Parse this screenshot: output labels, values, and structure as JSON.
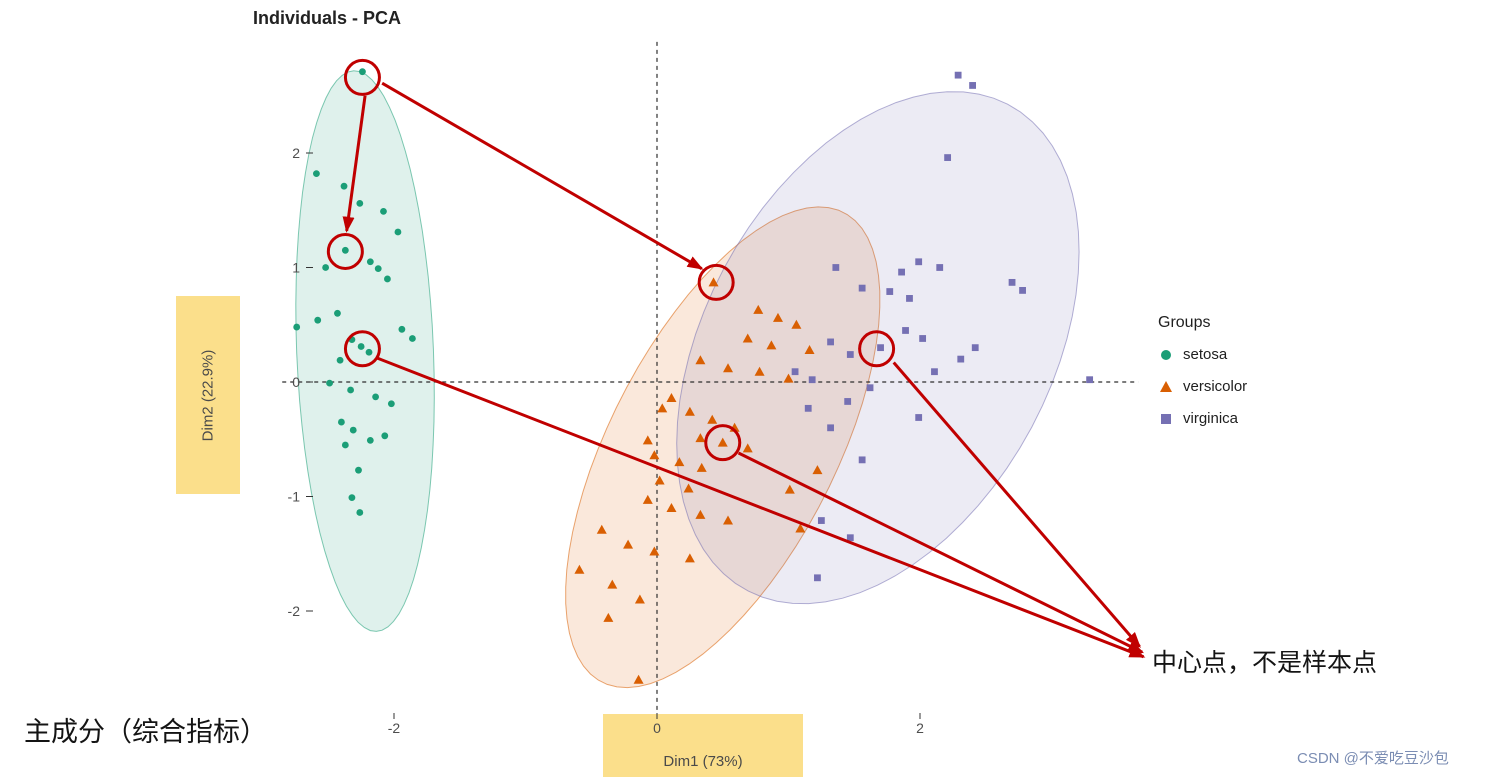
{
  "title": "Individuals - PCA",
  "axis": {
    "x_label": "Dim1 (73%)",
    "y_label": "Dim2 (22.9%)",
    "x_ticks": [
      -2,
      0,
      2
    ],
    "y_ticks": [
      -2,
      -1,
      0,
      1,
      2
    ]
  },
  "legend": {
    "title": "Groups",
    "items": [
      {
        "label": "setosa",
        "color": "#1B9E77",
        "shape": "circle"
      },
      {
        "label": "versicolor",
        "color": "#D95F02",
        "shape": "triangle"
      },
      {
        "label": "virginica",
        "color": "#7570B3",
        "shape": "square"
      }
    ]
  },
  "annotations": {
    "center_note": "中心点，不是样本点",
    "pc_note": "主成分（综合指标）",
    "watermark": "CSDN @不爱吃豆沙包"
  },
  "style": {
    "highlight": "#FBDF8B",
    "annotation_red": "#C00000",
    "axis_text": "#4d4d4d",
    "zero_line": "#2e2e2e"
  },
  "chart_data": {
    "type": "scatter",
    "title": "Individuals - PCA",
    "xlabel": "Dim1 (73%)",
    "ylabel": "Dim2 (22.9%)",
    "xlim": [
      -2.85,
      3.66
    ],
    "ylim": [
      -2.88,
      2.97
    ],
    "grid": false,
    "legend_position": "right",
    "series": [
      {
        "name": "setosa",
        "shape": "circle",
        "color": "#1B9E77",
        "points": [
          [
            -2.24,
            2.71
          ],
          [
            -2.59,
            1.82
          ],
          [
            -2.38,
            1.71
          ],
          [
            -2.26,
            1.56
          ],
          [
            -2.08,
            1.49
          ],
          [
            -2.37,
            1.15
          ],
          [
            -2.18,
            1.05
          ],
          [
            -2.12,
            0.99
          ],
          [
            -1.97,
            1.31
          ],
          [
            -2.74,
            0.48
          ],
          [
            -2.58,
            0.54
          ],
          [
            -2.43,
            0.6
          ],
          [
            -2.32,
            0.37
          ],
          [
            -2.25,
            0.31
          ],
          [
            -2.19,
            0.26
          ],
          [
            -2.41,
            0.19
          ],
          [
            -1.94,
            0.46
          ],
          [
            -1.86,
            0.38
          ],
          [
            -2.49,
            -0.01
          ],
          [
            -2.33,
            -0.07
          ],
          [
            -2.14,
            -0.13
          ],
          [
            -2.02,
            -0.19
          ],
          [
            -2.4,
            -0.35
          ],
          [
            -2.31,
            -0.42
          ],
          [
            -2.37,
            -0.55
          ],
          [
            -2.18,
            -0.51
          ],
          [
            -2.07,
            -0.47
          ],
          [
            -2.27,
            -0.77
          ],
          [
            -2.32,
            -1.01
          ],
          [
            -2.26,
            -1.14
          ],
          [
            -2.05,
            0.9
          ],
          [
            -2.52,
            1.0
          ]
        ]
      },
      {
        "name": "versicolor",
        "shape": "triangle",
        "color": "#D95F02",
        "points": [
          [
            0.43,
            0.87
          ],
          [
            0.77,
            0.63
          ],
          [
            0.92,
            0.56
          ],
          [
            1.06,
            0.5
          ],
          [
            0.69,
            0.38
          ],
          [
            0.87,
            0.32
          ],
          [
            1.16,
            0.28
          ],
          [
            0.33,
            0.19
          ],
          [
            0.54,
            0.12
          ],
          [
            0.78,
            0.09
          ],
          [
            1.0,
            0.03
          ],
          [
            0.11,
            -0.14
          ],
          [
            0.04,
            -0.23
          ],
          [
            0.25,
            -0.26
          ],
          [
            0.42,
            -0.33
          ],
          [
            0.59,
            -0.4
          ],
          [
            0.33,
            -0.49
          ],
          [
            0.5,
            -0.53
          ],
          [
            0.69,
            -0.58
          ],
          [
            -0.07,
            -0.51
          ],
          [
            -0.02,
            -0.64
          ],
          [
            0.17,
            -0.7
          ],
          [
            0.34,
            -0.75
          ],
          [
            0.02,
            -0.86
          ],
          [
            0.24,
            -0.93
          ],
          [
            -0.07,
            -1.03
          ],
          [
            0.11,
            -1.1
          ],
          [
            0.33,
            -1.16
          ],
          [
            0.54,
            -1.21
          ],
          [
            -0.42,
            -1.29
          ],
          [
            -0.22,
            -1.42
          ],
          [
            -0.02,
            -1.48
          ],
          [
            0.25,
            -1.54
          ],
          [
            -0.59,
            -1.64
          ],
          [
            -0.34,
            -1.77
          ],
          [
            -0.13,
            -1.9
          ],
          [
            -0.37,
            -2.06
          ],
          [
            -0.14,
            -2.6
          ],
          [
            1.09,
            -1.28
          ],
          [
            1.01,
            -0.94
          ],
          [
            1.22,
            -0.77
          ]
        ]
      },
      {
        "name": "virginica",
        "shape": "square",
        "color": "#7570B3",
        "points": [
          [
            2.29,
            2.68
          ],
          [
            2.4,
            2.59
          ],
          [
            2.21,
            1.96
          ],
          [
            1.99,
            1.05
          ],
          [
            2.15,
            1.0
          ],
          [
            1.86,
            0.96
          ],
          [
            1.36,
            1.0
          ],
          [
            1.56,
            0.82
          ],
          [
            1.77,
            0.79
          ],
          [
            1.92,
            0.73
          ],
          [
            2.7,
            0.87
          ],
          [
            2.78,
            0.8
          ],
          [
            2.42,
            0.3
          ],
          [
            1.7,
            0.3
          ],
          [
            1.47,
            0.24
          ],
          [
            1.32,
            0.35
          ],
          [
            1.89,
            0.45
          ],
          [
            2.02,
            0.38
          ],
          [
            3.29,
            0.02
          ],
          [
            2.11,
            0.09
          ],
          [
            1.05,
            0.09
          ],
          [
            1.18,
            0.02
          ],
          [
            1.45,
            -0.17
          ],
          [
            1.15,
            -0.23
          ],
          [
            1.32,
            -0.4
          ],
          [
            1.56,
            -0.68
          ],
          [
            1.25,
            -1.21
          ],
          [
            1.47,
            -1.36
          ],
          [
            1.22,
            -1.71
          ],
          [
            1.99,
            -0.31
          ],
          [
            2.31,
            0.2
          ],
          [
            1.62,
            -0.05
          ]
        ]
      }
    ],
    "ellipses": [
      {
        "group": "setosa",
        "cx": -2.22,
        "cy": 0.27,
        "a": 2.45,
        "b": 0.52,
        "angle": 92
      },
      {
        "group": "versicolor",
        "cx": 0.5,
        "cy": -0.57,
        "a": 2.25,
        "b": 0.88,
        "angle": 67
      },
      {
        "group": "virginica",
        "cx": 1.68,
        "cy": 0.3,
        "a": 2.35,
        "b": 1.35,
        "angle": 68
      }
    ],
    "highlighted_points": [
      {
        "x": -2.24,
        "y": 2.66,
        "note": "setosa-sample-top"
      },
      {
        "x": -2.37,
        "y": 1.14,
        "note": "setosa-sample-mid"
      },
      {
        "x": -2.24,
        "y": 0.29,
        "note": "setosa-centroid"
      },
      {
        "x": 0.45,
        "y": 0.87,
        "note": "versicolor-sample"
      },
      {
        "x": 0.5,
        "y": -0.53,
        "note": "versicolor-centroid"
      },
      {
        "x": 1.67,
        "y": 0.29,
        "note": "virginica-centroid"
      }
    ],
    "arrows": [
      {
        "from": [
          -2.22,
          2.5
        ],
        "to": [
          -2.36,
          1.32
        ]
      },
      {
        "from": [
          -2.09,
          2.61
        ],
        "to": [
          0.34,
          0.99
        ]
      },
      {
        "from": [
          -2.13,
          0.21
        ],
        "to": [
          3.7,
          -2.4
        ]
      },
      {
        "from": [
          0.62,
          -0.62
        ],
        "to": [
          3.69,
          -2.36
        ]
      },
      {
        "from": [
          1.8,
          0.17
        ],
        "to": [
          3.67,
          -2.31
        ]
      }
    ]
  }
}
